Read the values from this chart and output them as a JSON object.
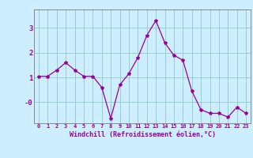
{
  "x": [
    0,
    1,
    2,
    3,
    4,
    5,
    6,
    7,
    8,
    9,
    10,
    11,
    12,
    13,
    14,
    15,
    16,
    17,
    18,
    19,
    20,
    21,
    22,
    23
  ],
  "y": [
    1.05,
    1.05,
    1.3,
    1.6,
    1.3,
    1.05,
    1.05,
    0.6,
    -0.65,
    0.7,
    1.15,
    1.8,
    2.7,
    3.3,
    2.4,
    1.9,
    1.7,
    0.45,
    -0.3,
    -0.45,
    -0.45,
    -0.6,
    -0.2,
    -0.45
  ],
  "line_color": "#990099",
  "marker": "*",
  "marker_size": 3,
  "bg_color": "#cceeff",
  "grid_color": "#99cccc",
  "xlabel": "Windchill (Refroidissement éolien,°C)",
  "xlabel_color": "#990099",
  "tick_color": "#990099",
  "ytick_labels": [
    "-0",
    "1",
    "2",
    "3"
  ],
  "ytick_vals": [
    0,
    1,
    2,
    3
  ],
  "ylim": [
    -0.85,
    3.75
  ],
  "xlim": [
    -0.5,
    23.5
  ]
}
